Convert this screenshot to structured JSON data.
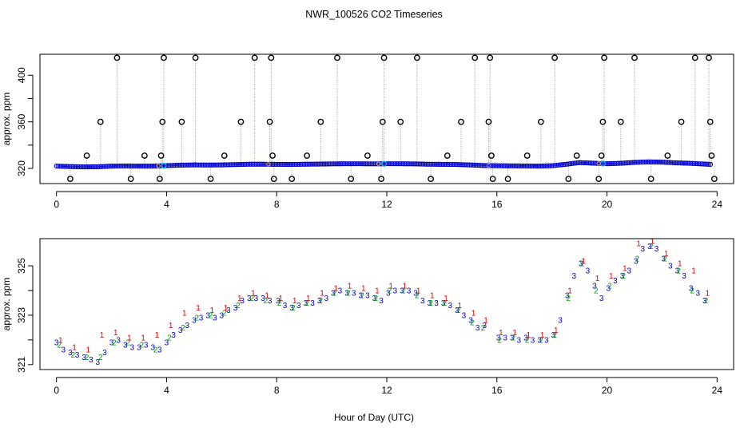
{
  "figure": {
    "title": "NWR_100526  CO2 Timeseries",
    "xlabel": "Hour of Day (UTC)"
  },
  "colors": {
    "frame": "#000000",
    "drop_line": "#9a9a9a",
    "outlier_marker": "#000000",
    "series_blue": "#0000cc",
    "series_cyan": "#00b4e6",
    "series_green": "#00a000",
    "series_red": "#dd0000",
    "series_orange": "#e6a000"
  },
  "chart_data": [
    {
      "type": "scatter",
      "name": "raw",
      "ylabel": "approx. ppm",
      "xlim": [
        -0.6,
        24.6
      ],
      "ylim": [
        307,
        418
      ],
      "xticks": [
        0,
        4,
        8,
        12,
        16,
        20,
        24
      ],
      "yticks": [
        320,
        360,
        400
      ],
      "yticks_minor": [
        340,
        380
      ],
      "grid": false,
      "baseline_series": {
        "description": "near-continuous baseline of ~1-minute points",
        "x": [
          0,
          0.5,
          1,
          1.5,
          2,
          2.5,
          3,
          3.5,
          4,
          4.5,
          5,
          5.5,
          6,
          6.5,
          7,
          7.5,
          8,
          8.5,
          9,
          9.5,
          10,
          10.5,
          11,
          11.5,
          12,
          12.5,
          13,
          13.5,
          14,
          14.5,
          15,
          15.5,
          16,
          16.5,
          17,
          17.5,
          18,
          18.5,
          19,
          19.5,
          20,
          20.5,
          21,
          21.5,
          22,
          22.5,
          23,
          23.5,
          23.8
        ],
        "y": [
          322.0,
          321.6,
          321.3,
          321.4,
          322.0,
          322.1,
          322.0,
          322.0,
          322.4,
          322.8,
          323.0,
          322.9,
          323.0,
          323.3,
          323.6,
          323.6,
          323.5,
          323.4,
          323.6,
          323.7,
          323.9,
          324.0,
          324.0,
          323.9,
          324.0,
          324.0,
          323.9,
          323.6,
          323.5,
          323.4,
          323.0,
          322.5,
          322.3,
          322.2,
          322.1,
          322.0,
          322.3,
          323.5,
          325.0,
          324.5,
          324.0,
          324.4,
          325.2,
          325.6,
          325.4,
          324.8,
          324.4,
          323.8,
          323.4
        ]
      },
      "spikes": {
        "description": "isolated outlier points with dotted drop lines to the baseline",
        "x": [
          0.5,
          1.1,
          1.6,
          2.2,
          2.7,
          3.2,
          3.75,
          3.8,
          3.85,
          3.9,
          4.55,
          5.05,
          5.6,
          6.1,
          6.7,
          7.2,
          7.75,
          7.8,
          7.85,
          7.9,
          8.55,
          9.1,
          9.6,
          10.2,
          10.7,
          11.3,
          11.8,
          11.85,
          11.9,
          12.5,
          13.1,
          13.6,
          14.2,
          14.7,
          15.2,
          15.7,
          15.75,
          15.8,
          15.85,
          16.4,
          17.1,
          17.6,
          18.1,
          18.6,
          18.9,
          19.7,
          19.8,
          19.85,
          19.9,
          20.5,
          21.0,
          21.6,
          22.2,
          22.7,
          23.2,
          23.7,
          23.75,
          23.8,
          23.9
        ],
        "y": [
          311,
          331,
          360,
          415,
          311,
          331,
          311,
          331,
          360,
          415,
          360,
          415,
          311,
          331,
          360,
          415,
          360,
          415,
          331,
          311,
          311,
          331,
          360,
          415,
          311,
          331,
          311,
          360,
          415,
          360,
          415,
          311,
          331,
          360,
          415,
          360,
          415,
          331,
          311,
          311,
          331,
          360,
          415,
          311,
          331,
          311,
          331,
          360,
          415,
          360,
          415,
          311,
          331,
          360,
          415,
          415,
          360,
          331,
          311
        ]
      }
    },
    {
      "type": "scatter",
      "name": "averaged",
      "ylabel": "approx. ppm",
      "xlim": [
        -0.6,
        24.6
      ],
      "ylim": [
        320.8,
        326.1
      ],
      "xticks": [
        0,
        4,
        8,
        12,
        16,
        20,
        24
      ],
      "yticks": [
        321,
        323,
        325
      ],
      "yticks_minor": [
        322,
        324
      ],
      "grid": false,
      "series": [
        {
          "name": "3",
          "marker": "3",
          "x": [
            0,
            0.25,
            0.5,
            0.75,
            1,
            1.25,
            1.5,
            1.75,
            2,
            2.25,
            2.5,
            2.75,
            3,
            3.25,
            3.5,
            3.75,
            4,
            4.25,
            4.5,
            4.75,
            5,
            5.25,
            5.5,
            5.75,
            6,
            6.25,
            6.5,
            6.75,
            7,
            7.25,
            7.5,
            7.75,
            8.05,
            8.3,
            8.55,
            8.8,
            9.05,
            9.3,
            9.55,
            9.8,
            10.05,
            10.3,
            10.55,
            10.8,
            11.05,
            11.3,
            11.55,
            11.8,
            12.05,
            12.3,
            12.55,
            12.8,
            13.05,
            13.3,
            13.55,
            13.8,
            14.05,
            14.3,
            14.55,
            14.8,
            15.05,
            15.3,
            15.55,
            16.05,
            16.3,
            16.55,
            16.8,
            17.05,
            17.3,
            17.55,
            17.8,
            18.05,
            18.3,
            18.55,
            18.8,
            19.05,
            19.3,
            19.55,
            19.8,
            20.05,
            20.3,
            20.55,
            20.8,
            21.05,
            21.3,
            21.55,
            21.8,
            22.05,
            22.3,
            22.55,
            22.8,
            23.05,
            23.3,
            23.55
          ],
          "y": [
            321.9,
            321.6,
            321.5,
            321.4,
            321.3,
            321.2,
            321.1,
            321.5,
            321.9,
            322.0,
            321.8,
            321.7,
            321.7,
            321.8,
            321.7,
            321.6,
            321.9,
            322.2,
            322.4,
            322.6,
            322.8,
            322.9,
            323.0,
            322.9,
            323.0,
            323.2,
            323.3,
            323.6,
            323.7,
            323.7,
            323.7,
            323.6,
            323.6,
            323.4,
            323.3,
            323.4,
            323.5,
            323.5,
            323.6,
            323.7,
            323.9,
            324.0,
            323.9,
            323.9,
            323.8,
            323.8,
            323.7,
            323.6,
            323.9,
            324.0,
            324.0,
            324.0,
            323.9,
            323.6,
            323.5,
            323.5,
            323.5,
            323.4,
            323.2,
            323.0,
            322.8,
            322.5,
            322.6,
            322.1,
            322.1,
            322.1,
            322.0,
            322.1,
            322.0,
            322.0,
            322.0,
            322.2,
            322.8,
            323.8,
            324.6,
            325.1,
            324.8,
            324.2,
            323.7,
            324.1,
            324.4,
            324.6,
            324.8,
            325.2,
            325.7,
            325.8,
            325.7,
            325.3,
            325.0,
            324.8,
            324.6,
            324.1,
            323.9,
            323.6
          ]
        },
        {
          "name": "2",
          "marker": "2",
          "x": [
            0.1,
            0.6,
            1.1,
            1.6,
            2.1,
            2.6,
            3.1,
            3.6,
            4.1,
            4.6,
            5.1,
            5.6,
            6.1,
            6.6,
            7.1,
            7.6,
            8.1,
            8.6,
            9.1,
            9.6,
            10.1,
            10.6,
            11.1,
            11.6,
            12.1,
            12.6,
            13.1,
            13.6,
            14.1,
            14.6,
            15.1,
            15.5,
            16.1,
            16.6,
            17.1,
            17.6,
            18.1,
            18.6,
            19.1,
            19.6,
            20.1,
            20.6,
            21.1,
            21.6,
            22.1,
            22.6,
            23.1,
            23.6
          ],
          "y": [
            321.8,
            321.4,
            321.3,
            321.3,
            321.9,
            321.9,
            321.8,
            321.6,
            322.1,
            322.5,
            322.9,
            323.0,
            323.1,
            323.4,
            323.7,
            323.6,
            323.5,
            323.3,
            323.5,
            323.6,
            323.9,
            323.9,
            323.8,
            323.7,
            324.0,
            324.0,
            323.8,
            323.5,
            323.5,
            323.2,
            322.7,
            322.5,
            322.0,
            322.1,
            322.0,
            322.0,
            322.2,
            323.7,
            325.1,
            324.0,
            324.2,
            324.6,
            325.3,
            325.8,
            325.3,
            324.8,
            324.0,
            323.6
          ]
        },
        {
          "name": "1",
          "marker": "1",
          "x": [
            0.15,
            0.65,
            1.15,
            1.65,
            2.15,
            2.65,
            3.15,
            3.65,
            4.15,
            4.65,
            5.15,
            5.65,
            6.15,
            6.65,
            7.15,
            7.65,
            8.15,
            8.65,
            9.15,
            9.65,
            10.15,
            10.65,
            11.15,
            11.65,
            12.15,
            12.65,
            13.15,
            13.65,
            14.15,
            14.65,
            15.15,
            15.6,
            16.15,
            16.65,
            17.15,
            17.65,
            18.15,
            18.65,
            19.15,
            19.65,
            20.15,
            20.65,
            21.15,
            21.65,
            22.15,
            22.65,
            23.15,
            23.65
          ],
          "y": [
            322.0,
            321.7,
            321.6,
            322.2,
            322.3,
            322.1,
            322.1,
            322.2,
            322.6,
            323.1,
            323.3,
            323.2,
            323.3,
            323.7,
            323.9,
            323.8,
            323.7,
            323.6,
            323.7,
            323.9,
            324.1,
            324.2,
            324.1,
            324.0,
            324.2,
            324.2,
            324.0,
            323.8,
            323.7,
            323.4,
            323.1,
            322.8,
            322.3,
            322.3,
            322.2,
            322.2,
            322.4,
            324.0,
            325.2,
            324.5,
            324.6,
            324.9,
            325.9,
            326.0,
            325.5,
            325.1,
            324.8,
            323.9
          ]
        }
      ]
    }
  ]
}
